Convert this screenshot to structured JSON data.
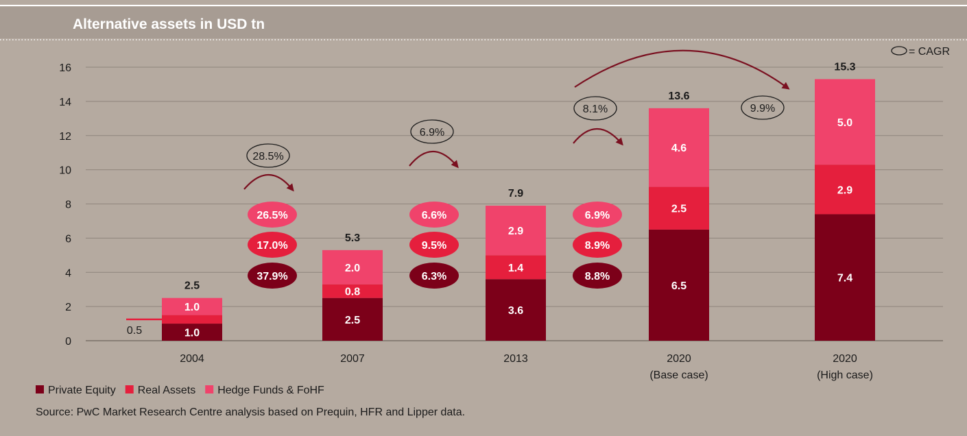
{
  "colors": {
    "background": "#b5aaa0",
    "header_band": "#a79c93",
    "private_equity": "#7c0019",
    "real_assets": "#e51f3d",
    "hedge_funds": "#f0436b",
    "arrow": "#7a1020",
    "grid": "#8f857c",
    "text": "#1a1a1a"
  },
  "chart_data": {
    "type": "bar",
    "stacked": true,
    "title": "Alternative assets in USD tn",
    "cagr_legend": "= CAGR",
    "ylim": [
      0,
      16
    ],
    "yticks": [
      0,
      2,
      4,
      6,
      8,
      10,
      12,
      14,
      16
    ],
    "grid": true,
    "categories": [
      {
        "label": "2004",
        "sub": ""
      },
      {
        "label": "2007",
        "sub": ""
      },
      {
        "label": "2013",
        "sub": ""
      },
      {
        "label": "2020",
        "sub": "(Base case)"
      },
      {
        "label": "2020",
        "sub": "(High case)"
      }
    ],
    "series": [
      {
        "name": "Private Equity",
        "values": [
          1.0,
          2.5,
          3.6,
          6.5,
          7.4
        ],
        "labels": [
          "1.0",
          "2.5",
          "3.6",
          "6.5",
          "7.4"
        ]
      },
      {
        "name": "Real Assets",
        "values": [
          0.5,
          0.8,
          1.4,
          2.5,
          2.9
        ],
        "labels": [
          "0.5",
          "0.8",
          "1.4",
          "2.5",
          "2.9"
        ]
      },
      {
        "name": "Hedge Funds & FoHF",
        "values": [
          1.0,
          2.0,
          2.9,
          4.6,
          5.0
        ],
        "labels": [
          "1.0",
          "2.0",
          "2.9",
          "4.6",
          "5.0"
        ]
      }
    ],
    "totals": [
      "2.5",
      "5.3",
      "7.9",
      "13.6",
      "15.3"
    ],
    "cagr_segments": [
      {
        "total": "28.5%",
        "hedge_funds": "26.5%",
        "real_assets": "17.0%",
        "private_equity": "37.9%"
      },
      {
        "total": "6.9%",
        "hedge_funds": "6.6%",
        "real_assets": "9.5%",
        "private_equity": "6.3%"
      },
      {
        "total": "8.1%",
        "hedge_funds": "6.9%",
        "real_assets": "8.9%",
        "private_equity": "8.8%"
      }
    ],
    "cagr_high_case": "9.9%",
    "legend_position": "bottom-left",
    "source": "Source: PwC Market Research Centre analysis based on Prequin, HFR and Lipper data."
  }
}
